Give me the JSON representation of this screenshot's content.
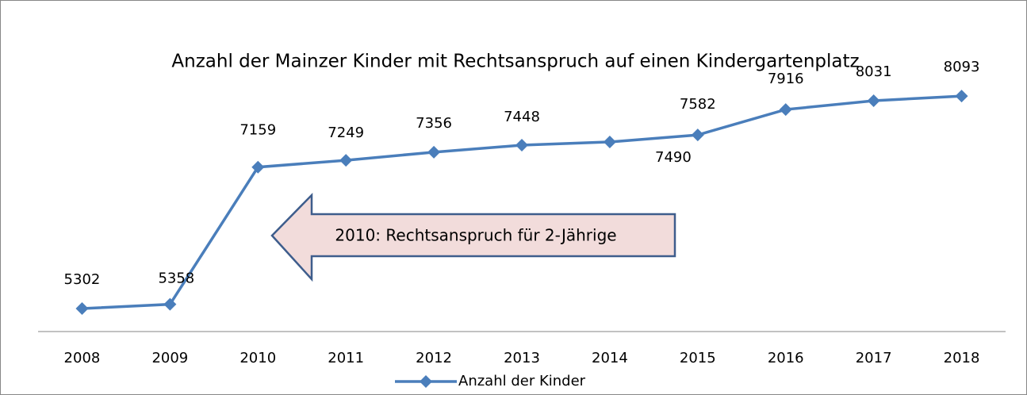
{
  "chart_data": {
    "type": "line",
    "title": "Anzahl der Mainzer Kinder mit Rechtsanspruch auf einen Kindergartenplatz",
    "categories": [
      "2008",
      "2009",
      "2010",
      "2011",
      "2012",
      "2013",
      "2014",
      "2015",
      "2016",
      "2017",
      "2018"
    ],
    "series": [
      {
        "name": "Anzahl der Kinder",
        "color": "#4a7ebb",
        "values": [
          5302,
          5358,
          7159,
          7249,
          7356,
          7448,
          7490,
          7582,
          7916,
          8031,
          8093
        ]
      }
    ],
    "ylim": [
      5000,
      8500
    ],
    "annotation": "2010: Rechtsanspruch für 2-Jährige",
    "legend": "bottom"
  }
}
